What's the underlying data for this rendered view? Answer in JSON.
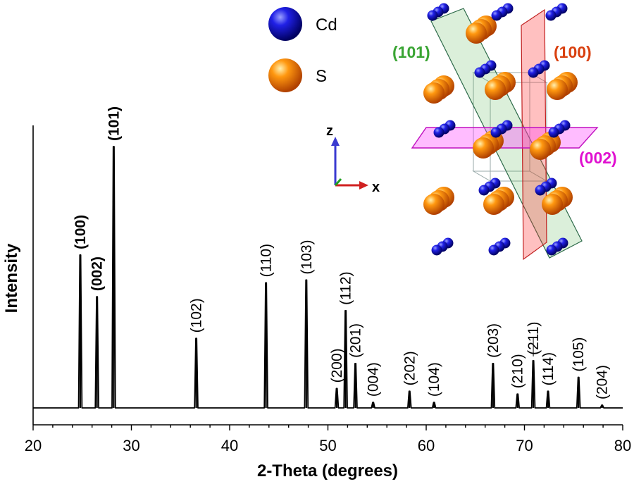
{
  "chart_data": {
    "type": "line",
    "title": "",
    "xlabel": "2-Theta (degrees)",
    "ylabel": "Intensity",
    "xlim": [
      20,
      80
    ],
    "ylim": [
      0,
      1.0
    ],
    "x_ticks": [
      20,
      30,
      40,
      50,
      60,
      70,
      80
    ],
    "x_tick_labels": [
      "20",
      "30",
      "40",
      "50",
      "60",
      "70",
      "80"
    ],
    "y_ticks_shown": false,
    "peaks": [
      {
        "hkl": "(100)",
        "two_theta": 24.8,
        "intensity": 0.55,
        "color": "#d9400f"
      },
      {
        "hkl": "(002)",
        "two_theta": 26.5,
        "intensity": 0.4,
        "color": "#e010d0"
      },
      {
        "hkl": "(101)",
        "two_theta": 28.2,
        "intensity": 0.94,
        "color": "#3aa534"
      },
      {
        "hkl": "(102)",
        "two_theta": 36.6,
        "intensity": 0.25,
        "color": "#000000"
      },
      {
        "hkl": "(110)",
        "two_theta": 43.7,
        "intensity": 0.45,
        "color": "#000000"
      },
      {
        "hkl": "(103)",
        "two_theta": 47.8,
        "intensity": 0.46,
        "color": "#000000"
      },
      {
        "hkl": "(200)",
        "two_theta": 50.9,
        "intensity": 0.07,
        "color": "#000000"
      },
      {
        "hkl": "(112)",
        "two_theta": 51.8,
        "intensity": 0.35,
        "color": "#000000"
      },
      {
        "hkl": "(201)",
        "two_theta": 52.8,
        "intensity": 0.16,
        "color": "#000000"
      },
      {
        "hkl": "(004)",
        "two_theta": 54.6,
        "intensity": 0.02,
        "color": "#000000"
      },
      {
        "hkl": "(202)",
        "two_theta": 58.3,
        "intensity": 0.06,
        "color": "#000000"
      },
      {
        "hkl": "(104)",
        "two_theta": 60.8,
        "intensity": 0.02,
        "color": "#000000"
      },
      {
        "hkl": "(203)",
        "two_theta": 66.8,
        "intensity": 0.16,
        "color": "#000000"
      },
      {
        "hkl": "(210)",
        "two_theta": 69.3,
        "intensity": 0.05,
        "color": "#000000"
      },
      {
        "hkl": "(211)",
        "two_theta": 70.9,
        "intensity": 0.17,
        "color": "#000000"
      },
      {
        "hkl": "(114)",
        "two_theta": 72.4,
        "intensity": 0.06,
        "color": "#000000"
      },
      {
        "hkl": "(105)",
        "two_theta": 75.5,
        "intensity": 0.11,
        "color": "#000000"
      },
      {
        "hkl": "(204)",
        "two_theta": 77.9,
        "intensity": 0.01,
        "color": "#000000"
      }
    ],
    "legend": [
      {
        "label": "Cd",
        "color": "#1a1ad6"
      },
      {
        "label": "S",
        "color": "#ff8a00"
      }
    ],
    "structure_inset": {
      "planes": [
        {
          "label": "(101)",
          "color": "#3aa534"
        },
        {
          "label": "(100)",
          "color": "#d9400f"
        },
        {
          "label": "(002)",
          "color": "#e010d0"
        }
      ],
      "axes": {
        "z_label": "z",
        "x_label": "x"
      }
    }
  }
}
